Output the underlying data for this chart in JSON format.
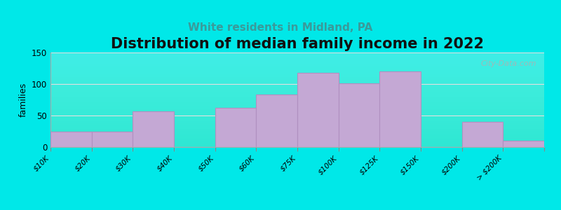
{
  "title": "Distribution of median family income in 2022",
  "subtitle": "White residents in Midland, PA",
  "bin_edges_labels": [
    "$10K",
    "$20K",
    "$30K",
    "$40K",
    "$50K",
    "$60K",
    "$75K",
    "$100K",
    "$125K",
    "$150K",
    "$200K",
    "> $200K"
  ],
  "bin_edges": [
    0,
    1,
    2,
    3,
    4,
    5,
    6,
    7,
    8,
    9,
    10,
    11,
    12
  ],
  "bar_values": [
    25,
    25,
    57,
    0,
    62,
    83,
    118,
    101,
    120,
    0,
    40,
    10
  ],
  "bar_color": "#c4a8d4",
  "bar_edge_color": "#b090c0",
  "bg_outer": "#00e8e8",
  "bg_grad_top": "#d8ecd8",
  "bg_grad_bottom": "#f8f8f8",
  "ylabel": "families",
  "ylim": [
    0,
    150
  ],
  "yticks": [
    0,
    50,
    100,
    150
  ],
  "title_fontsize": 15,
  "subtitle_fontsize": 11,
  "subtitle_color": "#3a9a9a",
  "watermark": "City-Data.com",
  "title_fontweight": "bold",
  "grid_color": "#e0e0e0"
}
